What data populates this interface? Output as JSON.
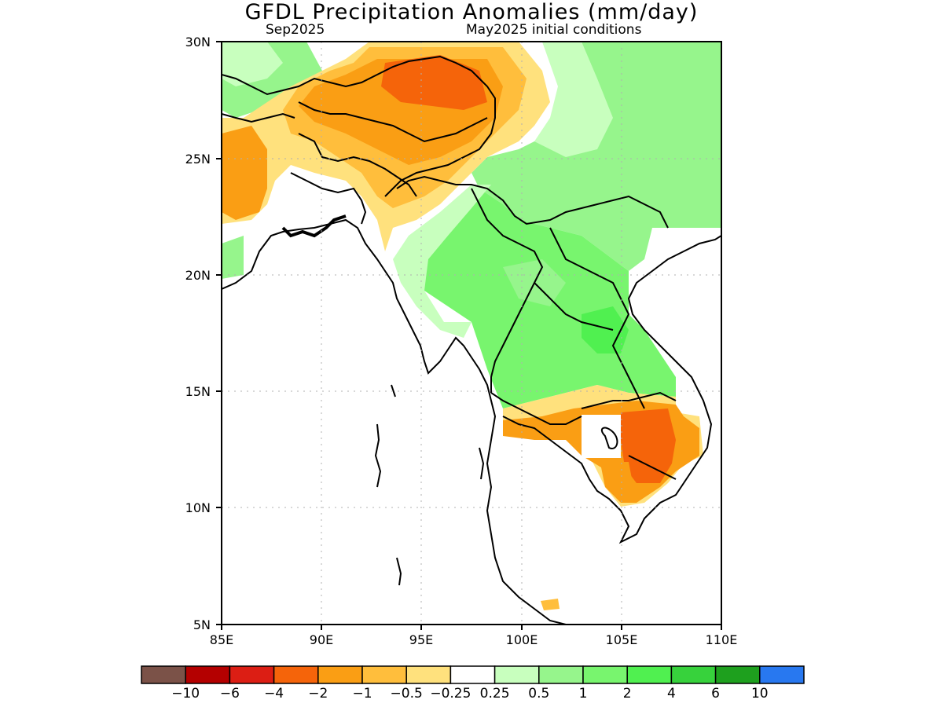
{
  "title": "GFDL Precipitation Anomalies (mm/day)",
  "subtitle_left": "Sep2025",
  "subtitle_right": "May2025 initial conditions",
  "map": {
    "lon_range": [
      85,
      110
    ],
    "lat_range": [
      5,
      30
    ],
    "lon_ticks": [
      "85E",
      "90E",
      "95E",
      "100E",
      "105E",
      "110E"
    ],
    "lat_ticks": [
      "5N",
      "10N",
      "15N",
      "20N",
      "25N",
      "30N"
    ],
    "gridlines": true,
    "region": "South and Southeast Asia"
  },
  "colorbar": {
    "colors": [
      "#7b5248",
      "#b40000",
      "#dc1e14",
      "#f5640a",
      "#fa9e14",
      "#ffbe3c",
      "#ffe17d",
      "#ffffff",
      "#c8ffbe",
      "#96f58c",
      "#78f56e",
      "#50f050",
      "#37d23c",
      "#1ea01e",
      "#2878f0"
    ],
    "labels": [
      "−10",
      "−6",
      "−4",
      "−2",
      "−1",
      "−0.5",
      "−0.25",
      "0.25",
      "0.5",
      "1",
      "2",
      "4",
      "6",
      "10"
    ]
  }
}
